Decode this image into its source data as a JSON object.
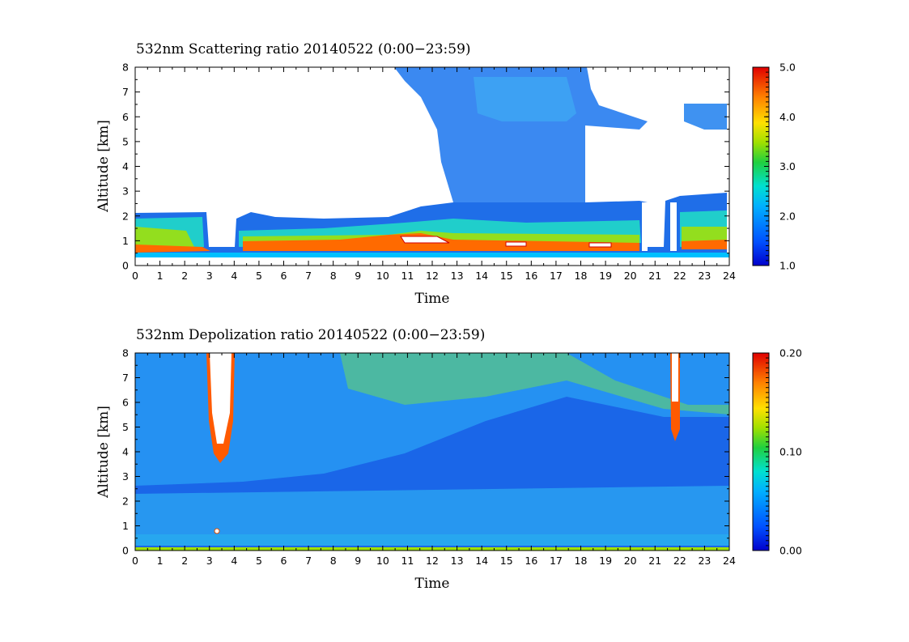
{
  "chart_data": [
    {
      "type": "heatmap",
      "title": "532nm Scattering ratio  20140522 (0:00−23:59)",
      "xlabel": "Time",
      "ylabel": "Altitude [km]",
      "xlim": [
        0,
        24
      ],
      "ylim": [
        0,
        8
      ],
      "x_ticks": [
        "0",
        "1",
        "2",
        "3",
        "4",
        "5",
        "6",
        "7",
        "8",
        "9",
        "10",
        "11",
        "12",
        "13",
        "14",
        "15",
        "16",
        "17",
        "18",
        "19",
        "20",
        "21",
        "22",
        "23",
        "24"
      ],
      "y_ticks": [
        "0",
        "1",
        "2",
        "3",
        "4",
        "5",
        "6",
        "7",
        "8"
      ],
      "colorbar": {
        "min": 1.0,
        "max": 5.0,
        "ticks": [
          "1.0",
          "2.0",
          "3.0",
          "4.0",
          "5.0"
        ],
        "colormap": "jet",
        "above_max": "white"
      },
      "grid": false
    },
    {
      "type": "heatmap",
      "title": "532nm Depolization ratio  20140522 (0:00−23:59)",
      "xlabel": "Time",
      "ylabel": "Altitude [km]",
      "xlim": [
        0,
        24
      ],
      "ylim": [
        0,
        8
      ],
      "x_ticks": [
        "0",
        "1",
        "2",
        "3",
        "4",
        "5",
        "6",
        "7",
        "8",
        "9",
        "10",
        "11",
        "12",
        "13",
        "14",
        "15",
        "16",
        "17",
        "18",
        "19",
        "20",
        "21",
        "22",
        "23",
        "24"
      ],
      "y_ticks": [
        "0",
        "1",
        "2",
        "3",
        "4",
        "5",
        "6",
        "7",
        "8"
      ],
      "colorbar": {
        "min": 0.0,
        "max": 0.2,
        "ticks": [
          "0.00",
          "0.10",
          "0.20"
        ],
        "colormap": "jet",
        "above_max": "white"
      },
      "grid": false
    }
  ]
}
